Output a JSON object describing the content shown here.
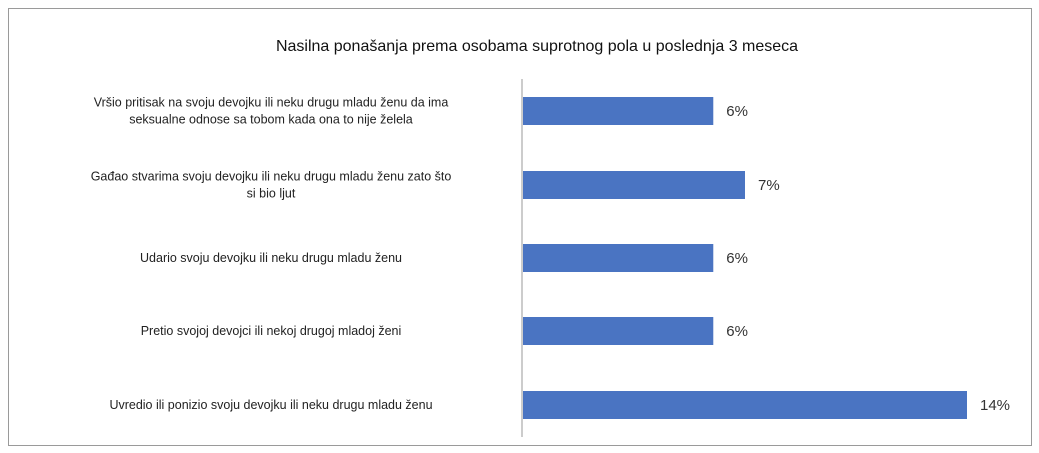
{
  "chart_data": {
    "type": "bar",
    "orientation": "horizontal",
    "title": "Nasilna ponašanja prema osobama suprotnog pola u poslednja 3 meseca",
    "categories": [
      [
        "Vršio pritisak na svoju devojku ili neku drugu mladu ženu da ima",
        "seksualne odnose sa tobom kada ona to nije želela"
      ],
      [
        "Gađao stvarima svoju devojku ili neku drugu mladu ženu zato što",
        "si bio ljut"
      ],
      [
        "Udario svoju devojku ili neku drugu mladu ženu"
      ],
      [
        "Pretio svojoj devojci ili nekoj drugoj mladoj ženi"
      ],
      [
        "Uvredio ili ponizio svoju devojku ili neku drugu mladu ženu"
      ]
    ],
    "values": [
      6,
      7,
      6,
      6,
      14
    ],
    "data_labels": [
      "6%",
      "7%",
      "6%",
      "6%",
      "14%"
    ],
    "xlim": [
      0,
      14
    ],
    "grid": false,
    "legend": "none",
    "bar_color": "#4a74c2"
  }
}
